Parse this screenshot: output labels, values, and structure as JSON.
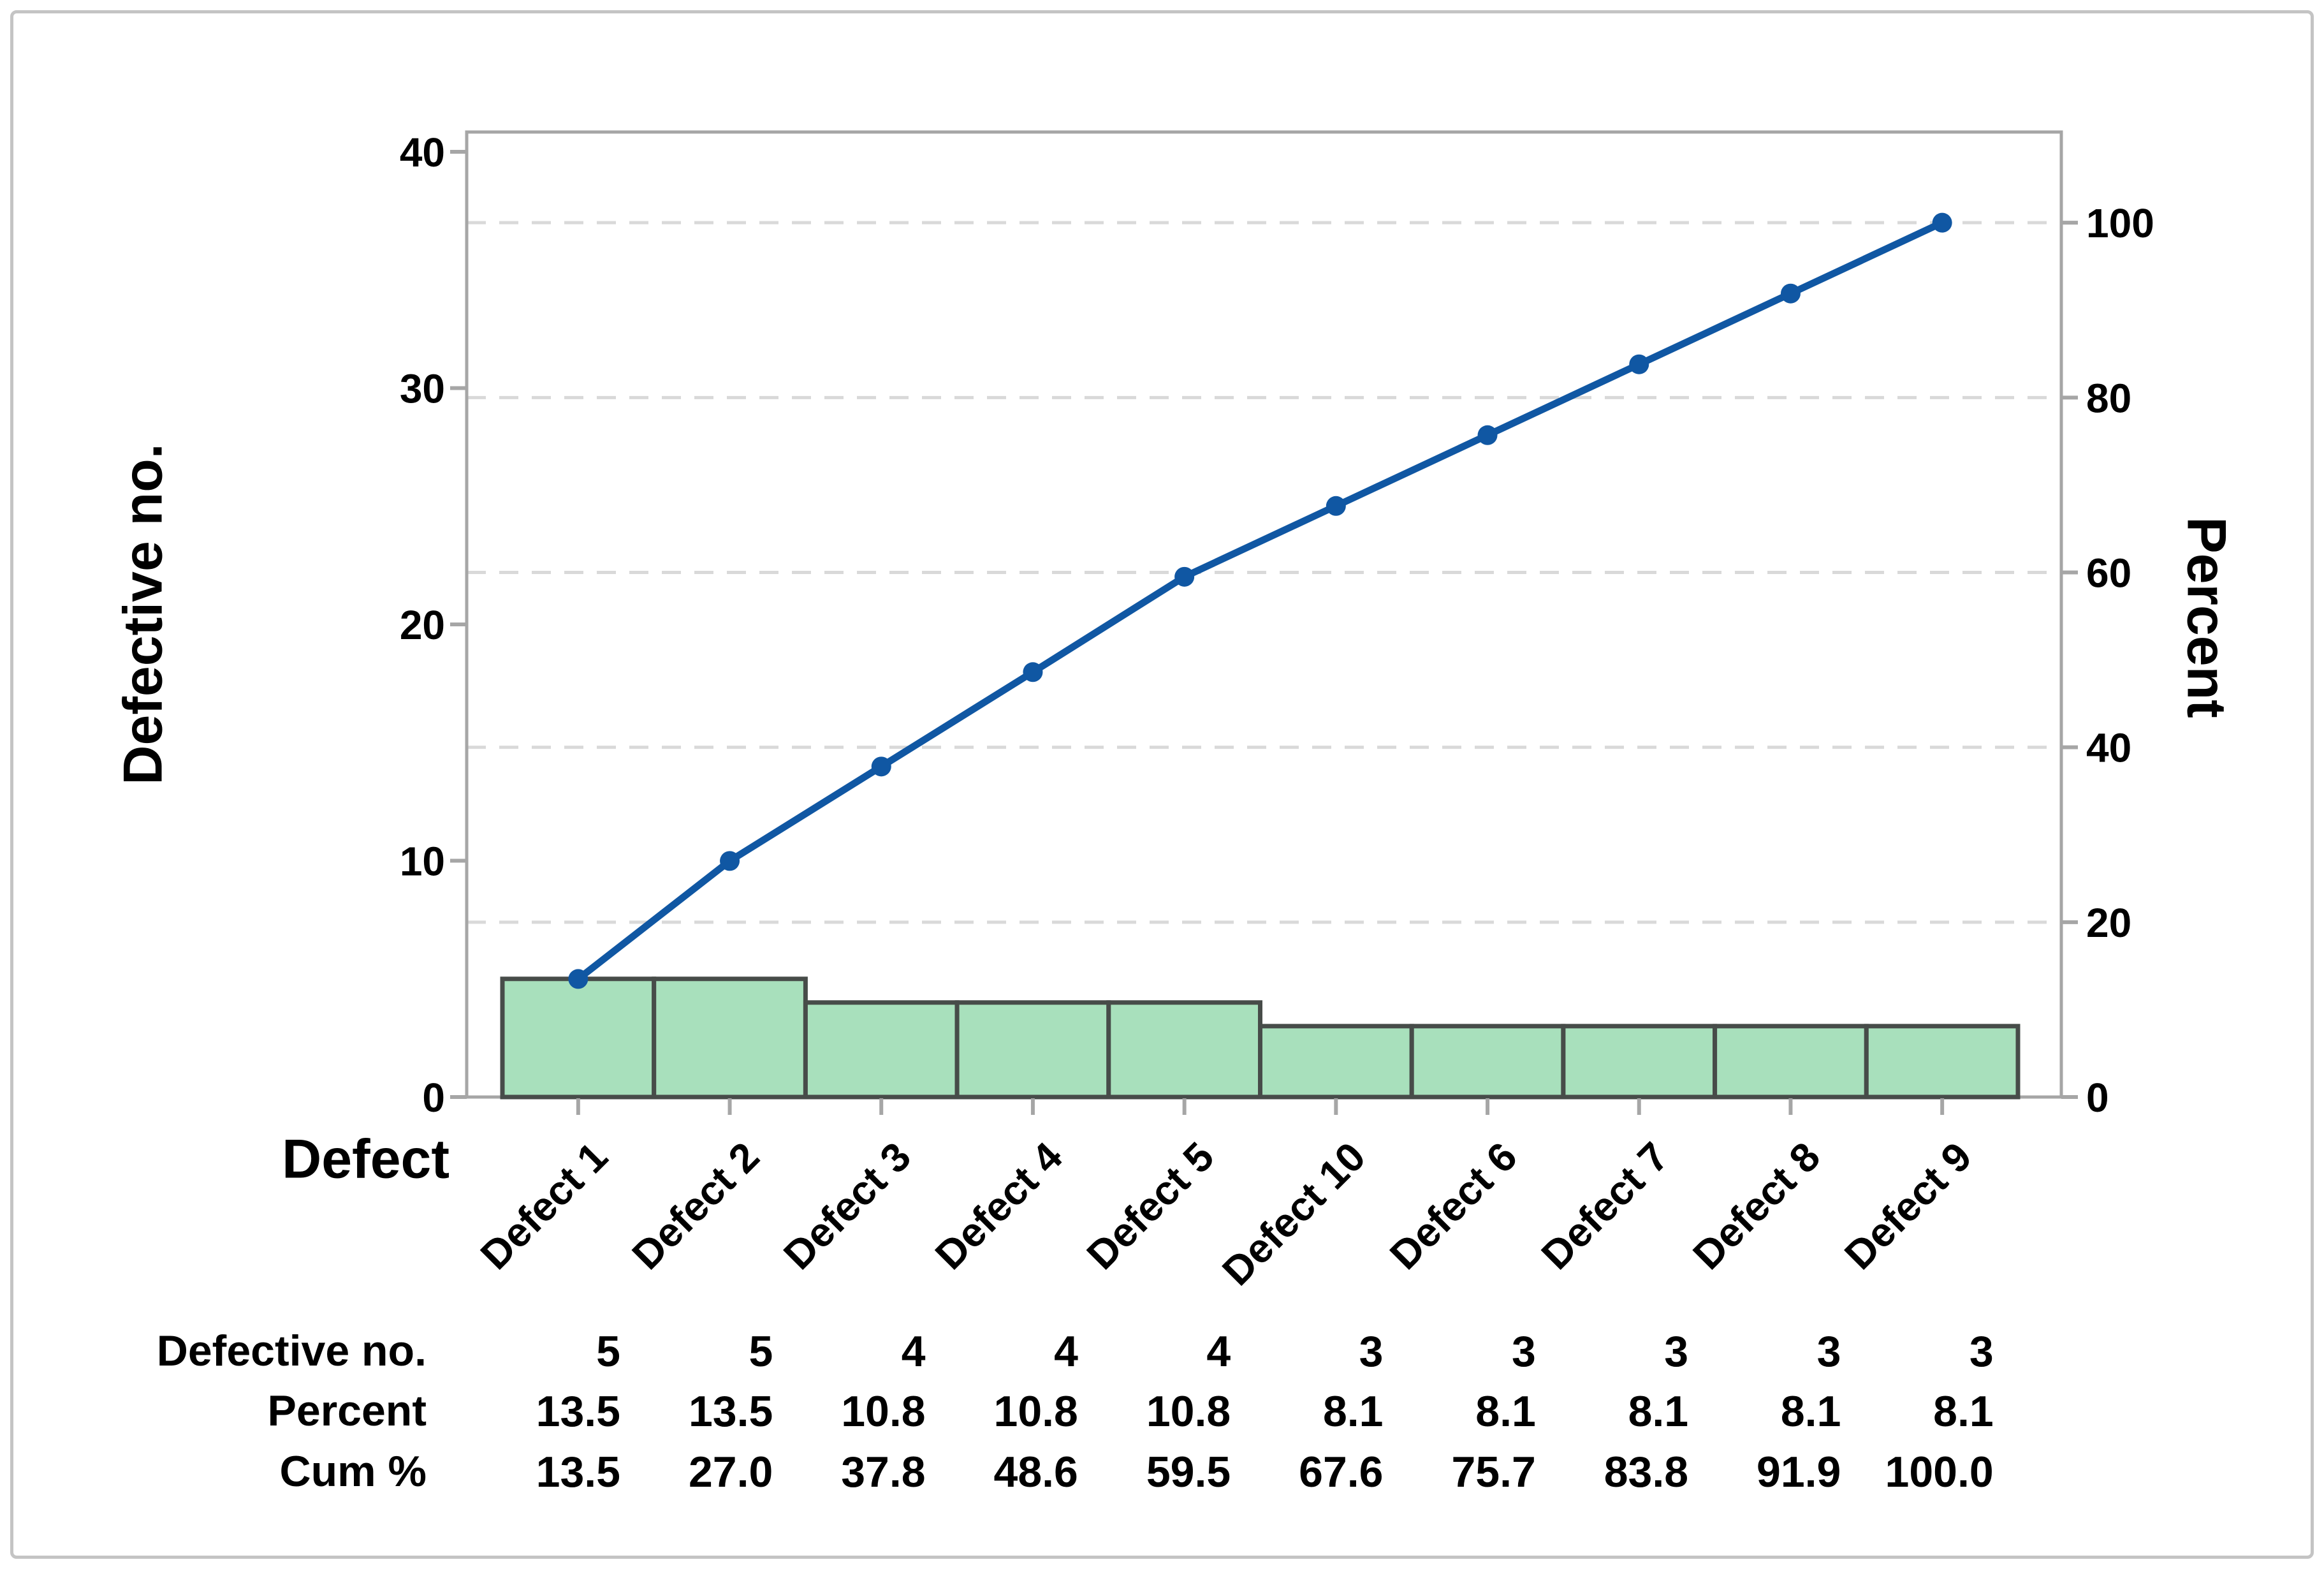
{
  "chart_data": {
    "type": "bar",
    "subtype": "pareto (bar + cumulative line, dual axis)",
    "categories": [
      "Defect 1",
      "Defect 2",
      "Defect 3",
      "Defect 4",
      "Defect 5",
      "Defect 10",
      "Defect 6",
      "Defect 7",
      "Defect 8",
      "Defect 9"
    ],
    "series": [
      {
        "name": "Defective no.",
        "type": "bar",
        "values": [
          5,
          5,
          4,
          4,
          4,
          3,
          3,
          3,
          3,
          3
        ]
      },
      {
        "name": "Cum %",
        "type": "line",
        "values": [
          13.5,
          27.0,
          37.8,
          48.6,
          59.5,
          67.6,
          75.7,
          83.8,
          91.9,
          100.0
        ]
      }
    ],
    "total_count": 37,
    "left_axis": {
      "label": "Defective no.",
      "ticks": [
        "0",
        "10",
        "20",
        "30",
        "40"
      ],
      "tick_values": [
        0,
        10,
        20,
        30,
        40
      ],
      "min": 0,
      "max": 40
    },
    "right_axis": {
      "label": "Percent",
      "ticks": [
        "0",
        "20",
        "40",
        "60",
        "80",
        "100"
      ],
      "tick_values": [
        0,
        20,
        40,
        60,
        80,
        100
      ],
      "min": 0,
      "max": 100
    },
    "x_axis": {
      "label": "Defect"
    },
    "grid": {
      "orientation": "horizontal",
      "style": "dashed",
      "at_right_axis_ticks": [
        20,
        40,
        60,
        80,
        100
      ]
    },
    "legend": "none",
    "colors": {
      "bar_fill": "#a8e0bc",
      "bar_border": "#474c49",
      "line": "#1057a3",
      "marker": "#1057a3",
      "axis": "#a6a6a6",
      "gridline": "#d9d9d9",
      "text": "#000000",
      "page_border": "#c4c4c4"
    }
  },
  "summary_table": {
    "rows": [
      {
        "label": "Defective no.",
        "values": [
          "5",
          "5",
          "4",
          "4",
          "4",
          "3",
          "3",
          "3",
          "3",
          "3"
        ]
      },
      {
        "label": "Percent",
        "values": [
          "13.5",
          "13.5",
          "10.8",
          "10.8",
          "10.8",
          "8.1",
          "8.1",
          "8.1",
          "8.1",
          "8.1"
        ]
      },
      {
        "label": "Cum %",
        "values": [
          "13.5",
          "27.0",
          "37.8",
          "48.6",
          "59.5",
          "67.6",
          "75.7",
          "83.8",
          "91.9",
          "100.0"
        ]
      }
    ]
  }
}
